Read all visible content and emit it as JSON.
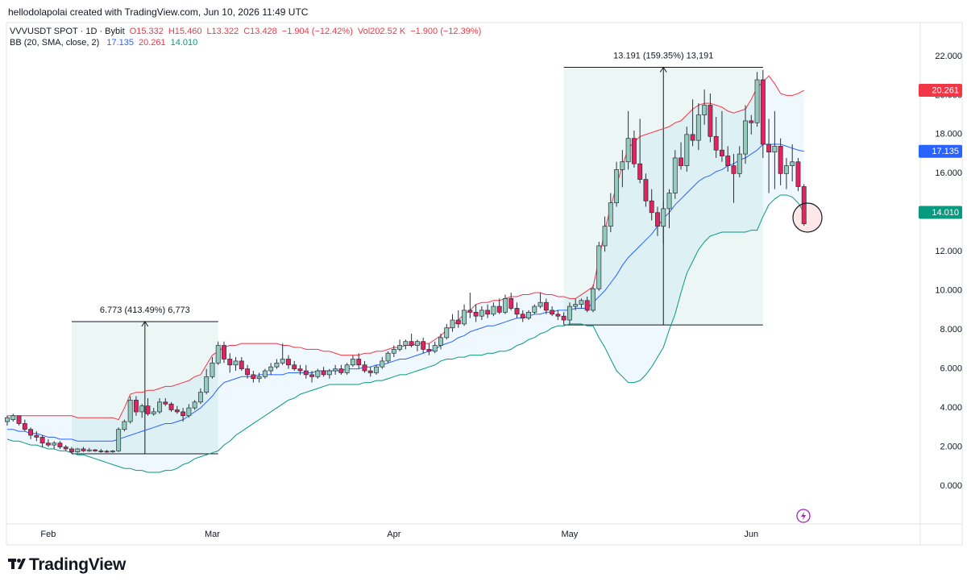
{
  "header": {
    "attribution": "hellodolapolai created with TradingView.com, Jun 10, 2026 11:49 UTC"
  },
  "footer": {
    "brand": "TradingView"
  },
  "chart_data": {
    "type": "candlestick",
    "legend": [
      "VVVUSDT SPOT · 1D · Bybit",
      "O15.332",
      "H15.460",
      "L13.322",
      "C13.428",
      "−1.904 (−12.42%)",
      "Vol202.52 K",
      "−1.900 (−12.39%)"
    ],
    "indicator": "BB (20, SMA, close, 2)",
    "categories": [
      null,
      null,
      null,
      null,
      null,
      null,
      null,
      "Feb",
      null,
      null,
      null,
      null,
      null,
      null,
      null,
      null,
      null,
      null,
      null,
      null,
      null,
      null,
      null,
      null,
      null,
      null,
      null,
      null,
      null,
      null,
      null,
      null,
      null,
      null,
      null,
      "Mar",
      null,
      null,
      null,
      null,
      null,
      null,
      null,
      null,
      null,
      null,
      null,
      null,
      null,
      null,
      null,
      null,
      null,
      null,
      null,
      null,
      null,
      null,
      null,
      null,
      null,
      null,
      null,
      null,
      null,
      null,
      "Apr",
      null,
      null,
      null,
      null,
      null,
      null,
      null,
      null,
      null,
      null,
      null,
      null,
      null,
      null,
      null,
      null,
      null,
      null,
      null,
      null,
      null,
      null,
      null,
      null,
      null,
      null,
      null,
      null,
      null,
      "May",
      null,
      null,
      null,
      null,
      null,
      null,
      null,
      null,
      null,
      null,
      null,
      null,
      null,
      null,
      null,
      null,
      null,
      null,
      null,
      null,
      null,
      null,
      null,
      null,
      null,
      null,
      null,
      null,
      null,
      null,
      "Jun",
      null,
      null,
      null,
      null,
      null,
      null,
      null,
      null,
      null
    ],
    "ohlc": [
      [
        3.3,
        3.6,
        3.1,
        3.5
      ],
      [
        3.4,
        3.7,
        3.3,
        3.6
      ],
      [
        3.6,
        3.6,
        3.1,
        3.2
      ],
      [
        3.2,
        3.4,
        2.8,
        2.9
      ],
      [
        2.9,
        3.0,
        2.4,
        2.6
      ],
      [
        2.6,
        2.8,
        2.3,
        2.5
      ],
      [
        2.5,
        2.6,
        2.0,
        2.2
      ],
      [
        2.2,
        2.4,
        2.0,
        2.1
      ],
      [
        2.1,
        2.3,
        1.9,
        2.2
      ],
      [
        2.2,
        2.3,
        1.9,
        2.0
      ],
      [
        2.0,
        2.1,
        1.8,
        1.9
      ],
      [
        1.9,
        2.0,
        1.65,
        1.75
      ],
      [
        1.75,
        1.95,
        1.7,
        1.9
      ],
      [
        1.9,
        2.0,
        1.75,
        1.8
      ],
      [
        1.8,
        1.95,
        1.75,
        1.85
      ],
      [
        1.85,
        1.9,
        1.75,
        1.8
      ],
      [
        1.8,
        1.9,
        1.7,
        1.78
      ],
      [
        1.78,
        1.85,
        1.7,
        1.75
      ],
      [
        1.75,
        1.85,
        1.7,
        1.8
      ],
      [
        1.8,
        3.0,
        1.75,
        2.9
      ],
      [
        2.9,
        3.4,
        2.8,
        3.3
      ],
      [
        3.3,
        4.6,
        3.2,
        4.4
      ],
      [
        4.4,
        4.6,
        3.6,
        3.8
      ],
      [
        3.8,
        4.2,
        3.5,
        4.1
      ],
      [
        4.1,
        4.5,
        3.6,
        3.7
      ],
      [
        3.7,
        4.0,
        3.6,
        3.8
      ],
      [
        3.8,
        4.5,
        3.7,
        4.3
      ],
      [
        4.3,
        4.5,
        4.1,
        4.2
      ],
      [
        4.2,
        4.3,
        3.8,
        3.9
      ],
      [
        3.9,
        4.1,
        3.7,
        3.8
      ],
      [
        3.8,
        4.0,
        3.3,
        3.6
      ],
      [
        3.6,
        4.2,
        3.5,
        4.0
      ],
      [
        4.0,
        4.4,
        3.9,
        4.3
      ],
      [
        4.3,
        5.0,
        4.2,
        4.8
      ],
      [
        4.8,
        6.0,
        4.7,
        5.6
      ],
      [
        5.6,
        6.6,
        5.5,
        6.3
      ],
      [
        6.3,
        7.4,
        6.2,
        7.2
      ],
      [
        7.2,
        7.4,
        6.3,
        6.5
      ],
      [
        6.5,
        6.8,
        5.8,
        6.2
      ],
      [
        6.2,
        6.6,
        5.9,
        6.4
      ],
      [
        6.4,
        6.6,
        5.9,
        6.0
      ],
      [
        6.0,
        6.2,
        5.5,
        5.7
      ],
      [
        5.7,
        5.9,
        5.3,
        5.5
      ],
      [
        5.5,
        5.8,
        5.3,
        5.6
      ],
      [
        5.6,
        6.0,
        5.5,
        5.9
      ],
      [
        5.9,
        6.3,
        5.7,
        6.1
      ],
      [
        6.1,
        6.5,
        6.0,
        6.3
      ],
      [
        6.3,
        7.3,
        6.2,
        6.5
      ],
      [
        6.5,
        6.7,
        6.0,
        6.2
      ],
      [
        6.2,
        6.4,
        5.9,
        6.0
      ],
      [
        6.0,
        6.2,
        5.7,
        5.9
      ],
      [
        5.9,
        6.2,
        5.5,
        5.7
      ],
      [
        5.7,
        5.9,
        5.3,
        5.6
      ],
      [
        5.6,
        6.0,
        5.5,
        5.9
      ],
      [
        5.9,
        6.1,
        5.6,
        5.7
      ],
      [
        5.7,
        6.0,
        5.5,
        5.9
      ],
      [
        5.9,
        6.2,
        5.7,
        6.0
      ],
      [
        6.0,
        6.2,
        5.7,
        5.8
      ],
      [
        5.8,
        6.3,
        5.7,
        6.2
      ],
      [
        6.2,
        6.7,
        6.1,
        6.5
      ],
      [
        6.5,
        6.8,
        6.0,
        6.2
      ],
      [
        6.2,
        6.4,
        5.8,
        5.9
      ],
      [
        5.9,
        6.1,
        5.6,
        5.8
      ],
      [
        5.8,
        6.2,
        5.7,
        6.1
      ],
      [
        6.1,
        6.6,
        6.0,
        6.4
      ],
      [
        6.4,
        6.9,
        6.3,
        6.8
      ],
      [
        6.8,
        7.2,
        6.6,
        7.0
      ],
      [
        7.0,
        7.5,
        6.9,
        7.2
      ],
      [
        7.2,
        7.5,
        7.0,
        7.4
      ],
      [
        7.4,
        7.8,
        7.1,
        7.2
      ],
      [
        7.2,
        7.5,
        6.9,
        7.4
      ],
      [
        7.4,
        7.6,
        6.8,
        7.0
      ],
      [
        7.0,
        7.3,
        6.7,
        6.9
      ],
      [
        6.9,
        7.4,
        6.8,
        7.2
      ],
      [
        7.2,
        7.8,
        7.0,
        7.6
      ],
      [
        7.6,
        8.3,
        7.5,
        8.1
      ],
      [
        8.1,
        8.8,
        7.9,
        8.5
      ],
      [
        8.5,
        9.0,
        8.1,
        8.3
      ],
      [
        8.3,
        9.3,
        8.2,
        9.0
      ],
      [
        9.0,
        9.9,
        8.6,
        8.9
      ],
      [
        8.9,
        9.3,
        8.4,
        8.7
      ],
      [
        8.7,
        9.2,
        8.5,
        9.0
      ],
      [
        9.0,
        9.3,
        8.6,
        8.8
      ],
      [
        8.8,
        9.4,
        8.7,
        9.2
      ],
      [
        9.2,
        9.6,
        8.8,
        8.9
      ],
      [
        8.9,
        9.8,
        8.8,
        9.6
      ],
      [
        9.6,
        9.9,
        9.0,
        9.1
      ],
      [
        9.1,
        9.4,
        8.6,
        8.8
      ],
      [
        8.8,
        9.0,
        8.4,
        8.6
      ],
      [
        8.6,
        9.0,
        8.5,
        8.9
      ],
      [
        8.9,
        9.3,
        8.8,
        9.2
      ],
      [
        9.2,
        9.9,
        9.1,
        9.4
      ],
      [
        9.4,
        9.6,
        8.8,
        9.0
      ],
      [
        9.0,
        9.2,
        8.7,
        8.8
      ],
      [
        8.8,
        9.0,
        8.5,
        8.7
      ],
      [
        8.7,
        8.9,
        8.25,
        8.5
      ],
      [
        8.5,
        9.4,
        8.3,
        9.2
      ],
      [
        9.2,
        9.6,
        9.0,
        9.3
      ],
      [
        9.3,
        9.6,
        9.1,
        9.5
      ],
      [
        9.5,
        9.7,
        8.9,
        9.0
      ],
      [
        9.0,
        10.3,
        8.9,
        10.1
      ],
      [
        10.1,
        12.5,
        10.0,
        12.3
      ],
      [
        12.3,
        13.8,
        12.0,
        13.3
      ],
      [
        13.3,
        15.0,
        13.0,
        14.5
      ],
      [
        14.5,
        16.6,
        14.3,
        16.2
      ],
      [
        16.2,
        17.2,
        15.3,
        16.6
      ],
      [
        16.6,
        19.2,
        16.2,
        17.8
      ],
      [
        17.8,
        18.2,
        16.3,
        16.5
      ],
      [
        16.5,
        18.8,
        15.5,
        15.7
      ],
      [
        15.7,
        16.0,
        14.3,
        14.6
      ],
      [
        14.6,
        15.2,
        13.6,
        14.0
      ],
      [
        14.0,
        14.3,
        12.8,
        13.3
      ],
      [
        13.3,
        14.6,
        12.4,
        14.2
      ],
      [
        14.2,
        15.2,
        13.2,
        15.0
      ],
      [
        15.0,
        17.2,
        14.7,
        16.8
      ],
      [
        16.8,
        17.6,
        16.2,
        16.4
      ],
      [
        16.4,
        18.4,
        16.1,
        18.0
      ],
      [
        18.0,
        19.8,
        17.4,
        17.7
      ],
      [
        17.7,
        19.6,
        17.2,
        19.0
      ],
      [
        19.0,
        20.3,
        18.5,
        19.5
      ],
      [
        19.5,
        20.1,
        17.6,
        17.9
      ],
      [
        17.9,
        18.9,
        16.8,
        17.2
      ],
      [
        17.2,
        19.2,
        16.6,
        16.9
      ],
      [
        16.9,
        17.4,
        16.1,
        16.4
      ],
      [
        16.4,
        17.0,
        14.5,
        16.0
      ],
      [
        16.0,
        17.4,
        15.8,
        17.0
      ],
      [
        17.0,
        19.5,
        16.5,
        18.7
      ],
      [
        18.7,
        19.0,
        18.0,
        18.6
      ],
      [
        18.6,
        21.2,
        18.4,
        20.8
      ],
      [
        20.8,
        21.3,
        16.8,
        17.5
      ],
      [
        17.5,
        18.8,
        15.0,
        17.1
      ],
      [
        17.1,
        19.2,
        15.2,
        17.4
      ],
      [
        17.4,
        17.8,
        15.4,
        16.0
      ],
      [
        16.0,
        16.8,
        15.2,
        16.4
      ],
      [
        16.4,
        17.5,
        15.6,
        16.6
      ],
      [
        16.6,
        16.8,
        15.1,
        15.332
      ],
      [
        15.332,
        15.46,
        13.322,
        13.428
      ]
    ],
    "up_color": "#93cbbc",
    "down_color": "#e0245e",
    "bands": [
      {
        "color": "#2962ff",
        "last_label": "17.135",
        "values": [
          2.9,
          2.9,
          2.8,
          2.8,
          2.7,
          2.7,
          2.6,
          2.5,
          2.5,
          2.4,
          2.4,
          2.4,
          2.3,
          2.3,
          2.3,
          2.3,
          2.3,
          2.3,
          2.3,
          2.4,
          2.5,
          2.6,
          2.7,
          2.8,
          2.9,
          3.0,
          3.1,
          3.2,
          3.2,
          3.3,
          3.4,
          3.6,
          3.8,
          4.0,
          4.3,
          4.6,
          5.0,
          5.3,
          5.4,
          5.5,
          5.6,
          5.6,
          5.6,
          5.7,
          5.7,
          5.7,
          5.7,
          5.7,
          5.8,
          5.8,
          5.8,
          5.8,
          5.8,
          5.9,
          5.9,
          5.9,
          5.9,
          5.9,
          6.0,
          6.0,
          6.0,
          6.1,
          6.1,
          6.2,
          6.2,
          6.3,
          6.4,
          6.5,
          6.5,
          6.6,
          6.7,
          6.8,
          6.9,
          7.0,
          7.2,
          7.3,
          7.4,
          7.6,
          7.7,
          7.9,
          8.0,
          8.1,
          8.2,
          8.2,
          8.3,
          8.4,
          8.5,
          8.6,
          8.6,
          8.7,
          8.8,
          8.8,
          8.9,
          8.9,
          9.0,
          9.0,
          9.0,
          9.1,
          9.1,
          9.1,
          9.4,
          9.7,
          10.0,
          10.4,
          10.8,
          11.3,
          11.7,
          12.0,
          12.3,
          12.6,
          12.9,
          13.3,
          13.7,
          14.0,
          14.4,
          14.7,
          15.0,
          15.3,
          15.6,
          15.8,
          15.9,
          16.1,
          16.2,
          16.4,
          16.5,
          16.7,
          16.8,
          17.0,
          17.2,
          17.5,
          17.5,
          17.5,
          17.5,
          17.4,
          17.3,
          17.2,
          17.135
        ]
      },
      {
        "color": "#f23645",
        "last_label": "20.261",
        "values": [
          3.6,
          3.6,
          3.6,
          3.6,
          3.6,
          3.6,
          3.6,
          3.6,
          3.6,
          3.6,
          3.6,
          3.6,
          3.5,
          3.5,
          3.5,
          3.5,
          3.5,
          3.5,
          3.5,
          3.4,
          4.0,
          4.7,
          4.8,
          4.8,
          4.9,
          4.9,
          5.0,
          5.1,
          5.1,
          5.2,
          5.3,
          5.4,
          5.6,
          5.7,
          6.2,
          6.7,
          6.9,
          7.1,
          7.2,
          7.2,
          7.3,
          7.3,
          7.3,
          7.3,
          7.3,
          7.3,
          7.3,
          7.2,
          7.2,
          7.1,
          7.1,
          7.0,
          7.0,
          7.0,
          6.9,
          6.9,
          6.8,
          6.7,
          6.7,
          6.7,
          6.7,
          6.8,
          6.8,
          6.9,
          6.9,
          7.0,
          7.1,
          7.1,
          7.2,
          7.2,
          7.3,
          7.3,
          7.3,
          7.5,
          7.7,
          8.0,
          8.2,
          8.5,
          8.8,
          9.0,
          9.3,
          9.4,
          9.4,
          9.5,
          9.5,
          9.6,
          9.7,
          9.7,
          9.8,
          9.8,
          9.9,
          9.9,
          9.8,
          9.8,
          9.7,
          9.7,
          9.6,
          9.6,
          9.8,
          10.0,
          10.2,
          11.6,
          13.1,
          14.3,
          15.4,
          16.4,
          17.3,
          17.6,
          17.9,
          18.0,
          18.1,
          18.2,
          18.3,
          18.4,
          18.6,
          18.7,
          19.0,
          19.3,
          19.5,
          19.6,
          19.6,
          19.5,
          19.4,
          19.2,
          19.1,
          19.2,
          19.3,
          19.8,
          20.4,
          20.7,
          21.0,
          20.6,
          20.1,
          20.0,
          20.0,
          20.1,
          20.261
        ]
      },
      {
        "color": "#089981",
        "last_label": "14.010",
        "values": [
          2.4,
          2.3,
          2.3,
          2.2,
          2.1,
          2.1,
          2.0,
          1.9,
          1.9,
          1.8,
          1.8,
          1.7,
          1.6,
          1.6,
          1.5,
          1.4,
          1.3,
          1.2,
          1.1,
          1.0,
          0.9,
          0.9,
          0.8,
          0.8,
          0.7,
          0.7,
          0.7,
          0.8,
          0.8,
          0.9,
          1.1,
          1.2,
          1.4,
          1.5,
          1.6,
          1.7,
          1.8,
          2.1,
          2.3,
          2.6,
          2.8,
          3.0,
          3.2,
          3.4,
          3.6,
          3.8,
          4.0,
          4.2,
          4.4,
          4.5,
          4.7,
          4.8,
          4.9,
          5.0,
          5.1,
          5.2,
          5.2,
          5.2,
          5.2,
          5.2,
          5.2,
          5.3,
          5.3,
          5.4,
          5.4,
          5.5,
          5.6,
          5.7,
          5.7,
          5.8,
          5.9,
          6.0,
          6.1,
          6.2,
          6.4,
          6.5,
          6.5,
          6.6,
          6.6,
          6.7,
          6.7,
          6.7,
          6.8,
          6.8,
          6.9,
          6.9,
          7.0,
          7.2,
          7.3,
          7.5,
          7.6,
          7.8,
          7.9,
          8.1,
          8.2,
          8.2,
          8.3,
          8.3,
          8.3,
          8.2,
          8.2,
          7.6,
          7.1,
          6.5,
          5.9,
          5.6,
          5.3,
          5.3,
          5.4,
          5.7,
          6.1,
          6.6,
          7.1,
          8.0,
          8.8,
          9.9,
          10.9,
          11.5,
          12.1,
          12.5,
          12.8,
          12.9,
          13.0,
          13.0,
          13.0,
          13.0,
          13.0,
          13.1,
          13.1,
          13.8,
          14.4,
          14.7,
          14.9,
          14.9,
          14.8,
          14.5,
          14.01
        ]
      }
    ],
    "band_fill": "#2196f3",
    "measures": [
      {
        "label": "6.773 (413.49%) 6,773",
        "from": 1.65,
        "to": 8.42,
        "span": [
          11,
          36
        ]
      },
      {
        "label": "13.191 (159.35%) 13,191",
        "from": 8.25,
        "to": 21.44,
        "span": [
          95,
          129
        ]
      }
    ],
    "ylim": [
      -1.94,
      23.73
    ],
    "yticks": [
      {
        "value": 22,
        "label": "22.000"
      },
      {
        "value": 20,
        "label": "20.000"
      },
      {
        "value": 18,
        "label": "18.000"
      },
      {
        "value": 16,
        "label": "16.000"
      },
      {
        "value": 14,
        "label": "14.000"
      },
      {
        "value": 12,
        "label": "12.000"
      },
      {
        "value": 10,
        "label": "10.000"
      },
      {
        "value": 8,
        "label": "8.000"
      },
      {
        "value": 6,
        "label": "6.000"
      },
      {
        "value": 4,
        "label": "4.000"
      },
      {
        "value": 2,
        "label": "2.000"
      },
      {
        "value": 0,
        "label": "0.000"
      }
    ]
  }
}
